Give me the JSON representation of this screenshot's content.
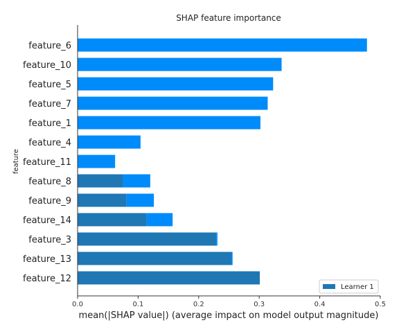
{
  "chart_data": {
    "type": "bar",
    "orientation": "horizontal",
    "title": "SHAP feature importance",
    "xlabel": "mean(|SHAP value|) (average impact on model output magnitude)",
    "ylabel": "feature",
    "xlim": [
      0,
      0.5
    ],
    "xticks": [
      "0.0",
      "0.1",
      "0.2",
      "0.3",
      "0.4",
      "0.5"
    ],
    "categories": [
      "feature_6",
      "feature_10",
      "feature_5",
      "feature_7",
      "feature_1",
      "feature_4",
      "feature_11",
      "feature_8",
      "feature_9",
      "feature_14",
      "feature_3",
      "feature_13",
      "feature_12"
    ],
    "series": [
      {
        "name": "Learner 1",
        "color": "#1f77b4",
        "values": [
          0,
          0,
          0,
          0,
          0,
          0,
          0,
          0.075,
          0.081,
          0.114,
          0.229,
          0.254,
          0.301
        ]
      },
      {
        "color": "#008bfb",
        "values": [
          0.478,
          0.337,
          0.323,
          0.314,
          0.302,
          0.104,
          0.062,
          0.045,
          0.045,
          0.043,
          0.002,
          0.002,
          0
        ]
      }
    ],
    "legend": {
      "position": "bottom-right",
      "entries": [
        "Learner 1"
      ]
    },
    "grid": false
  }
}
